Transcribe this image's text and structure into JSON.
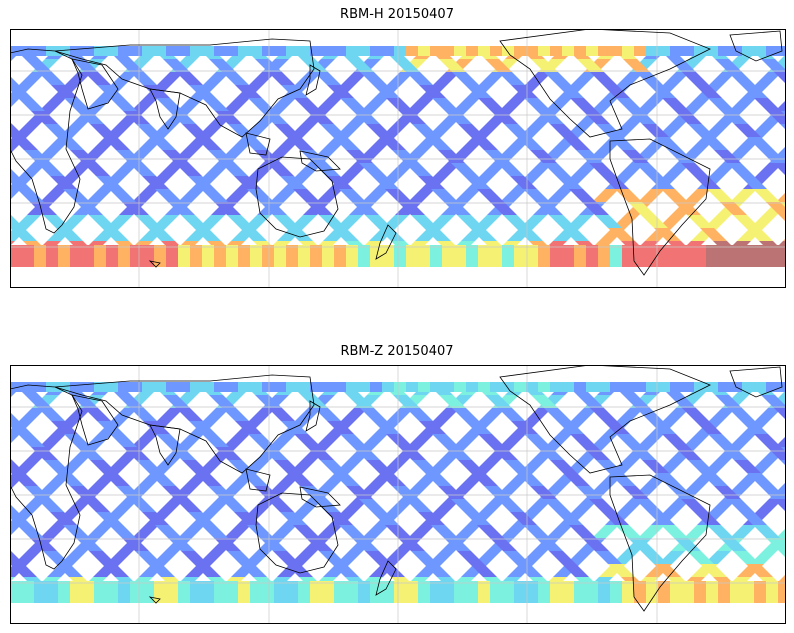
{
  "panels": [
    {
      "id": "top",
      "title": "RBM-H 20150407",
      "hot": "strong"
    },
    {
      "id": "bottom",
      "title": "RBM-Z 20150407",
      "hot": "weak"
    }
  ],
  "colors": {
    "low": "#5a63f0",
    "low2": "#5f8cff",
    "mid": "#5fd2f0",
    "cyan": "#6ff0dc",
    "yellow": "#f5f064",
    "orange": "#ffaa50",
    "red": "#f06464",
    "dark": "#b46464",
    "coast": "#000000",
    "grid": "#c8c8c8"
  },
  "map": {
    "lon_range": [
      0,
      360
    ],
    "lat_range": [
      -70,
      80
    ],
    "gridlines": true,
    "colormap": "jet (semi-transparent)"
  }
}
